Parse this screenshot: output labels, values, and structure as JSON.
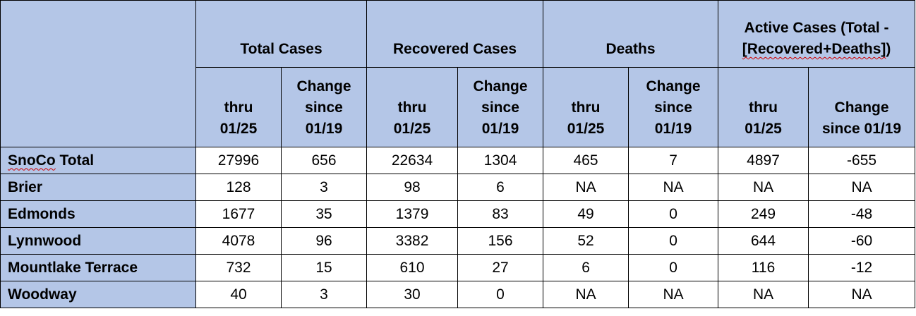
{
  "table": {
    "groups": [
      {
        "label": "Total Cases"
      },
      {
        "label": "Recovered Cases"
      },
      {
        "label": "Deaths"
      },
      {
        "label_prefix": "Active Cases (Total - ",
        "label_squiggle": "[Recovered+Deaths]",
        "label_suffix": ")"
      }
    ],
    "subheaders": [
      [
        "thru",
        "01/25"
      ],
      [
        "Change",
        "since",
        "01/19"
      ],
      [
        "thru",
        "01/25"
      ],
      [
        "Change",
        "since",
        "01/19"
      ],
      [
        "thru",
        "01/25"
      ],
      [
        "Change",
        "since",
        "01/19"
      ],
      [
        "thru",
        "01/25"
      ],
      [
        "Change",
        "since 01/19"
      ]
    ],
    "rows": [
      {
        "label": "SnoCo Total",
        "values": [
          "27996",
          "656",
          "22634",
          "1304",
          "465",
          "7",
          "4897",
          "-655"
        ]
      },
      {
        "label": "Brier",
        "values": [
          "128",
          "3",
          "98",
          "6",
          "NA",
          "NA",
          "NA",
          "NA"
        ]
      },
      {
        "label": "Edmonds",
        "values": [
          "1677",
          "35",
          "1379",
          "83",
          "49",
          "0",
          "249",
          "-48"
        ]
      },
      {
        "label": "Lynnwood",
        "values": [
          "4078",
          "96",
          "3382",
          "156",
          "52",
          "0",
          "644",
          "-60"
        ]
      },
      {
        "label": "Mountlake Terrace",
        "values": [
          "732",
          "15",
          "610",
          "27",
          "6",
          "0",
          "116",
          "-12"
        ]
      },
      {
        "label": "Woodway",
        "values": [
          "40",
          "3",
          "30",
          "0",
          "NA",
          "NA",
          "NA",
          "NA"
        ]
      }
    ]
  },
  "colors": {
    "header_fill": "#b4c6e7",
    "border": "#000000",
    "spellcheck_underline": "#d10000"
  }
}
